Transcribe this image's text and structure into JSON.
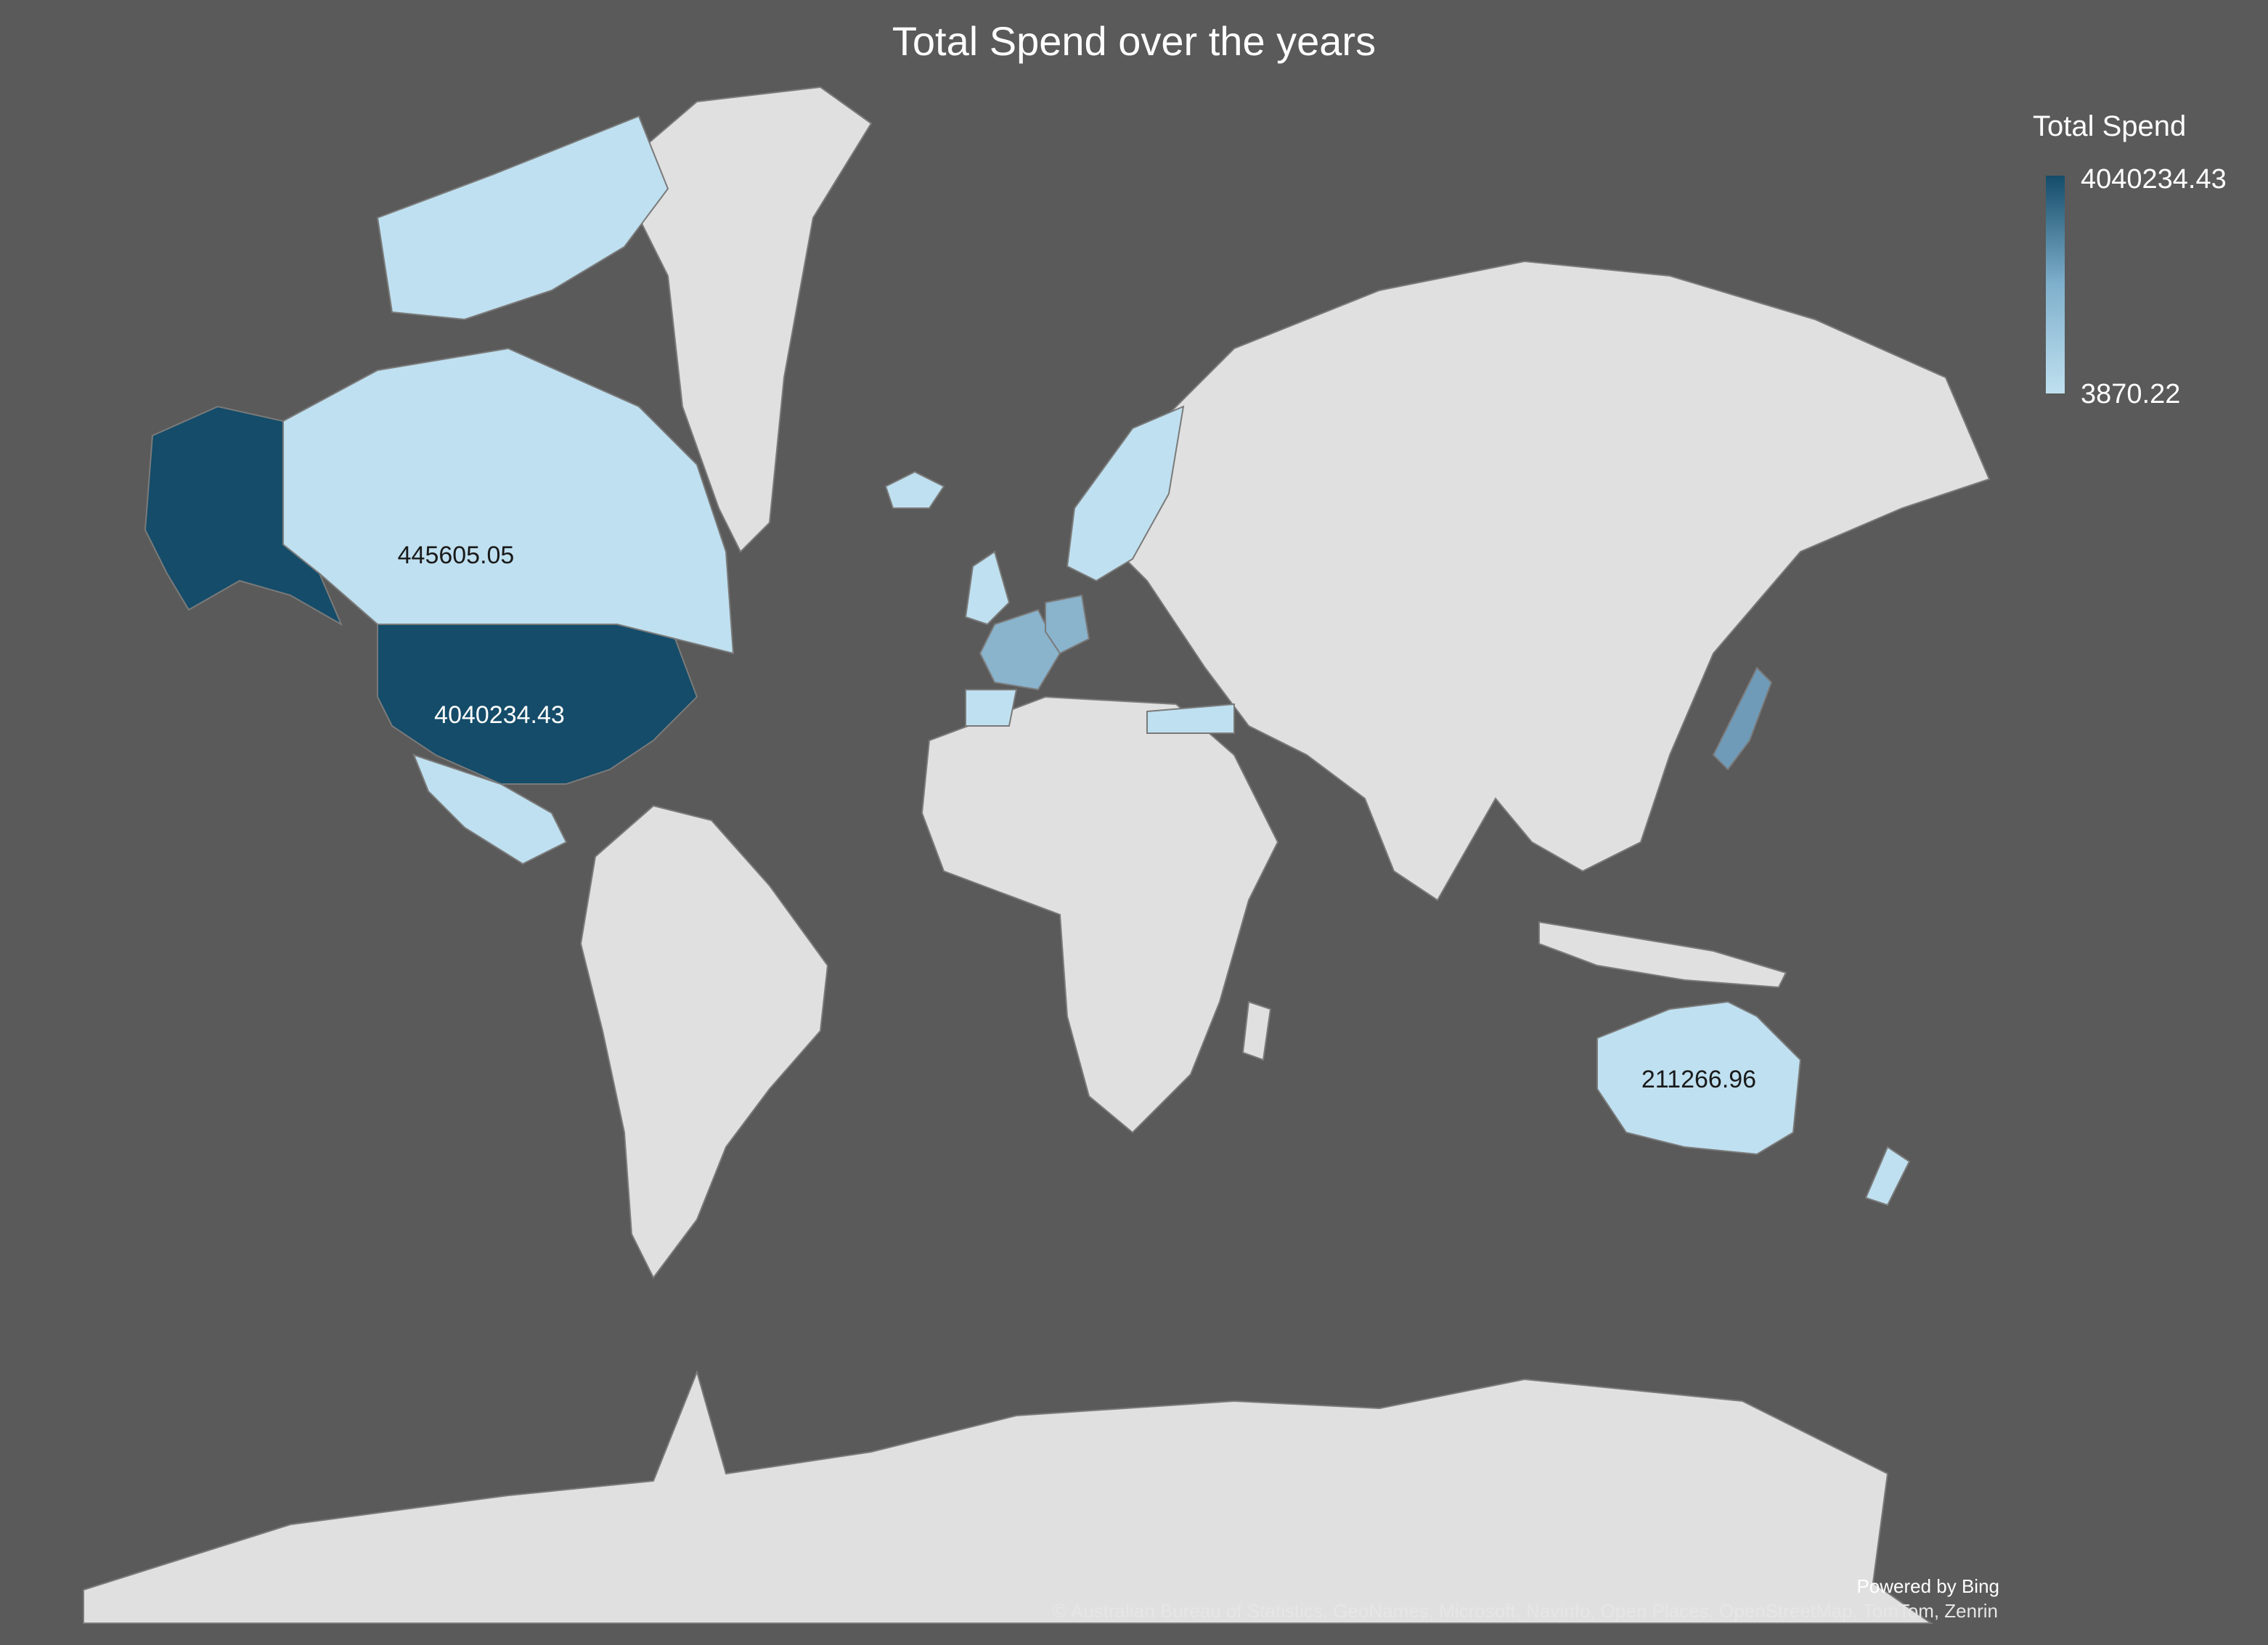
{
  "title": "Total Spend over the years",
  "legend": {
    "title": "Total Spend",
    "max_label": "4040234.43",
    "min_label": "3870.22",
    "color_max": "#144c69",
    "color_min": "#bfe0f0"
  },
  "chart_data": {
    "type": "choropleth",
    "title": "Total Spend over the years",
    "metric": "Total Spend",
    "color_range": [
      3870.22,
      4040234.43
    ],
    "labeled_values": [
      {
        "region": "United States",
        "value": 4040234.43
      },
      {
        "region": "Canada",
        "value": 445605.05
      },
      {
        "region": "Australia",
        "value": 211266.96
      }
    ],
    "labels": {
      "usa": "4040234.43",
      "canada": "445605.05",
      "australia": "211266.96"
    }
  },
  "attribution": {
    "powered_by": "Powered by Bing",
    "copyright": "© Australian Bureau of Statistics, GeoNames, Microsoft, Navinfo, Open Places, OpenStreetMap, TomTom, Zenrin"
  },
  "colors": {
    "background": "#5a5a5a",
    "land": "#e0e0e0",
    "usa": "#144c69",
    "germany_france": "#8ab3cc",
    "light_blue": "#bfe0f0"
  }
}
